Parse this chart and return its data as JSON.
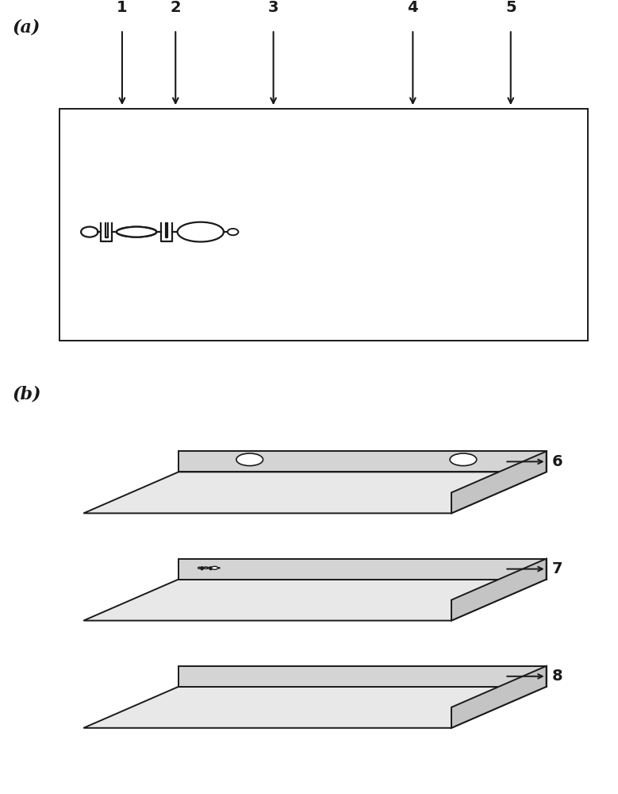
{
  "bg_color": "#ffffff",
  "line_color": "#1a1a1a",
  "panel_a_label": "(a)",
  "panel_b_label": "(b)",
  "arrow_labels": [
    "1",
    "2",
    "3",
    "4",
    "5"
  ],
  "layer_labels": [
    "6",
    "7",
    "8"
  ],
  "font_size_panel": 16,
  "font_size_num": 14,
  "chip_bg": "#f8f8f8",
  "plate_face": "#e8e8e8",
  "plate_top": "#d8d8d8",
  "plate_right": "#c8c8c8"
}
